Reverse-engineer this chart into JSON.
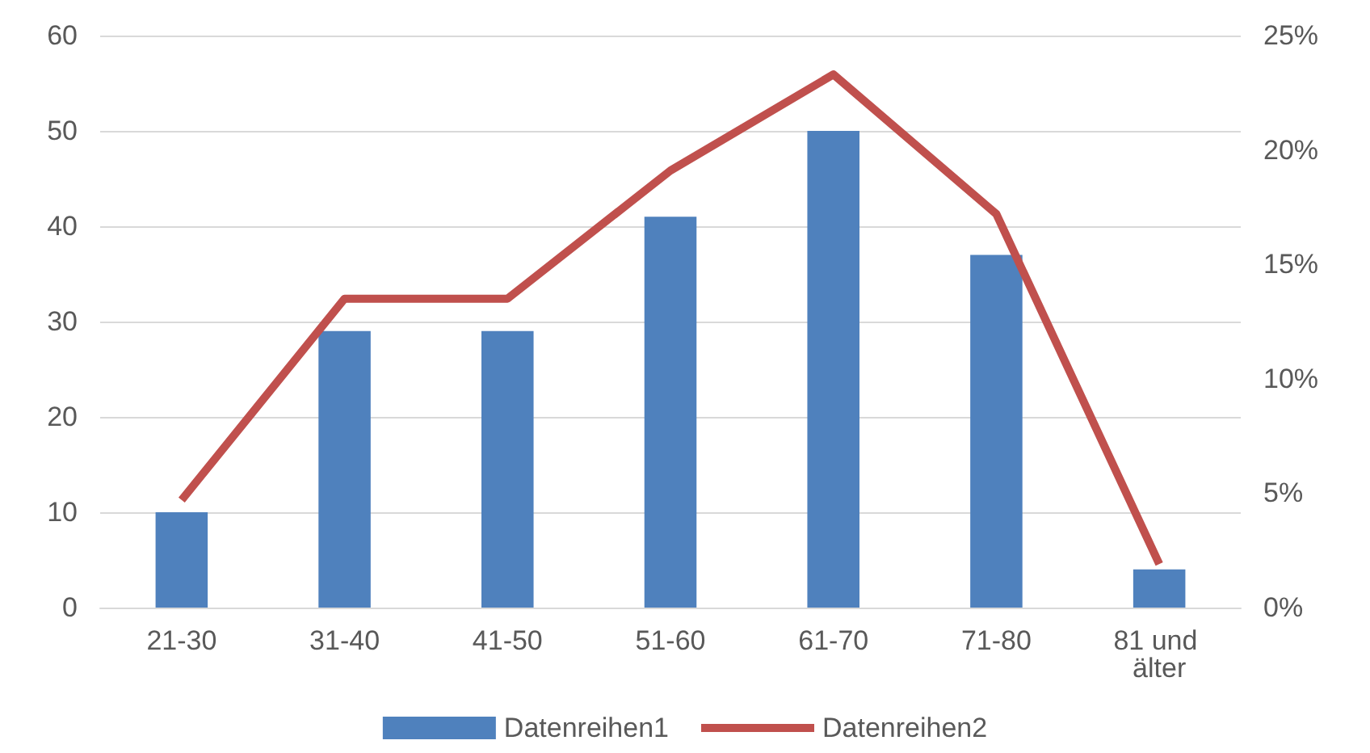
{
  "chart_data": {
    "type": "bar",
    "categories": [
      "21-30",
      "31-40",
      "41-50",
      "51-60",
      "61-70",
      "71-80",
      "81 und älter"
    ],
    "series": [
      {
        "name": "Datenreihen1",
        "color": "#4f81bd",
        "values": [
          10,
          29,
          29,
          41,
          50,
          37,
          4
        ]
      },
      {
        "name": "Datenreihen2",
        "type": "line",
        "axis": "y2",
        "color": "#c0504d",
        "values": [
          4.7,
          13.5,
          13.5,
          19.1,
          23.3,
          17.2,
          1.9
        ]
      }
    ],
    "ylim": [
      0,
      60
    ],
    "yticks": [
      0,
      10,
      20,
      30,
      40,
      50,
      60
    ],
    "y2lim": [
      0,
      25
    ],
    "y2ticks": [
      {
        "value": 0,
        "label": "0%"
      },
      {
        "value": 5,
        "label": "5%"
      },
      {
        "value": 10,
        "label": "10%"
      },
      {
        "value": 15,
        "label": "15%"
      },
      {
        "value": 20,
        "label": "20%"
      },
      {
        "value": 25,
        "label": "25%"
      }
    ],
    "grid": "y",
    "legend": "bottom",
    "marker": "none"
  }
}
